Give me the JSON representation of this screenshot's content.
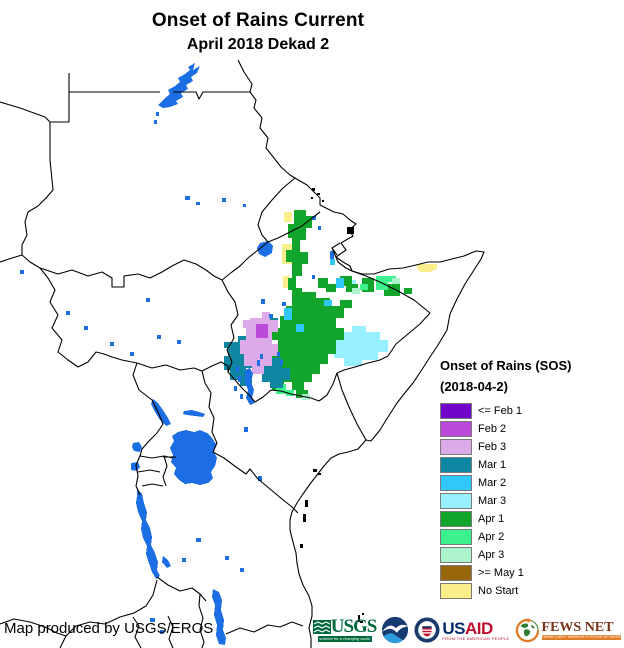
{
  "title": {
    "main": "Onset of Rains Current",
    "sub": "April 2018 Dekad 2"
  },
  "legend": {
    "title": "Onset of Rains (SOS)",
    "subtitle": "(2018-04-2)",
    "items": [
      {
        "label": "<= Feb 1",
        "color": "#7105c9"
      },
      {
        "label": "Feb 2",
        "color": "#bb49da"
      },
      {
        "label": "Feb 3",
        "color": "#dcaae8"
      },
      {
        "label": "Mar 1",
        "color": "#0d87a1"
      },
      {
        "label": "Mar 2",
        "color": "#2fc8f8"
      },
      {
        "label": "Mar 3",
        "color": "#97f0ff"
      },
      {
        "label": "Apr 1",
        "color": "#12a52c"
      },
      {
        "label": "Apr 2",
        "color": "#3df18c"
      },
      {
        "label": "Apr 3",
        "color": "#abf3ca"
      },
      {
        "label": ">= May 1",
        "color": "#97660b"
      },
      {
        "label": "No Start",
        "color": "#f9ee8a"
      }
    ]
  },
  "credit": "Map produced by USGS/EROS",
  "logos": {
    "usgs": {
      "label": "USGS",
      "tagline": "science for a changing world"
    },
    "noaa": {
      "label": "NOAA"
    },
    "usaid": {
      "label_us": "US",
      "label_aid": "AID",
      "tagline": "FROM THE AMERICAN PEOPLE"
    },
    "fews": {
      "label": "FEWS NET",
      "tagline": "FAMINE EARLY WARNING SYSTEMS NETWORK"
    }
  },
  "map": {
    "water_color": "#1b6ee3",
    "border_color": "#000000"
  }
}
